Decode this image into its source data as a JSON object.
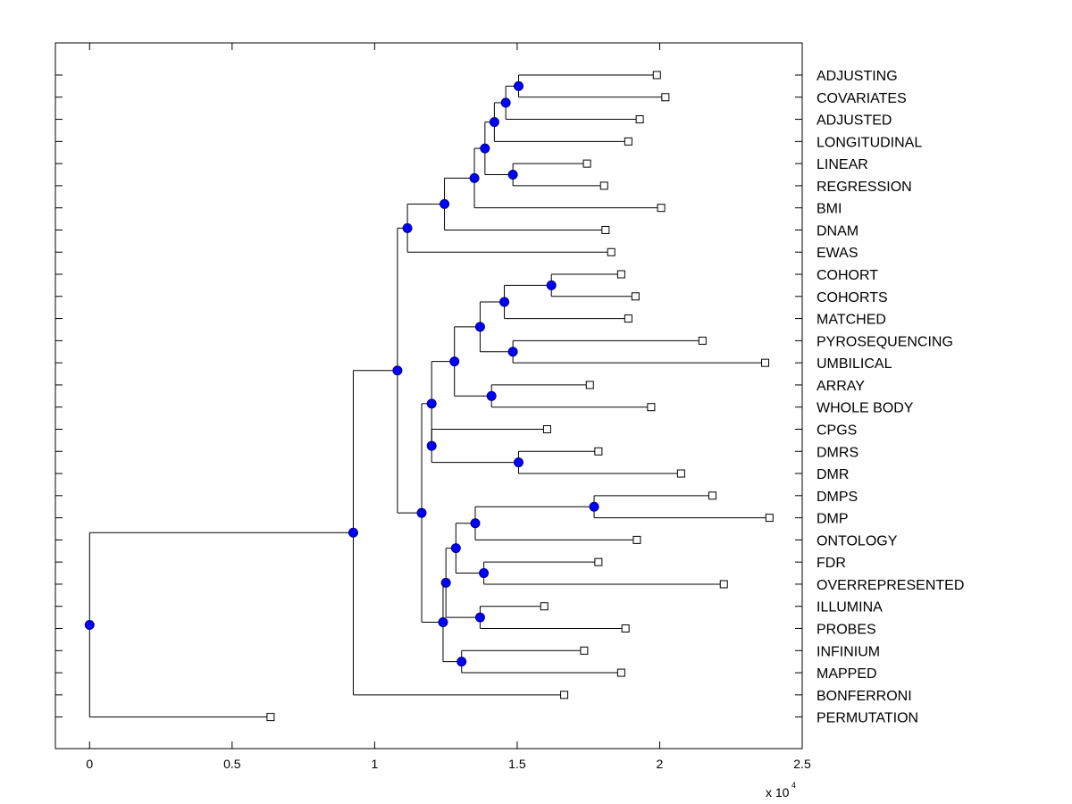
{
  "chart_data": {
    "type": "dendrogram",
    "title": "",
    "xlabel": "",
    "ylabel": "",
    "x_multiplier_label": "x 10",
    "x_multiplier_exponent": "4",
    "xlim": [
      -0.12,
      2.5
    ],
    "x_ticks": [
      0,
      0.5,
      1,
      1.5,
      2,
      2.5
    ],
    "x_tick_labels": [
      "0",
      "0.5",
      "1",
      "1.5",
      "2",
      "2.5"
    ],
    "grid": false,
    "leaves": [
      {
        "label": "ADJUSTING",
        "x": 1.99
      },
      {
        "label": "COVARIATES",
        "x": 2.02
      },
      {
        "label": "ADJUSTED",
        "x": 1.93
      },
      {
        "label": "LONGITUDINAL",
        "x": 1.89
      },
      {
        "label": "LINEAR",
        "x": 1.745
      },
      {
        "label": "REGRESSION",
        "x": 1.805
      },
      {
        "label": "BMI",
        "x": 2.005
      },
      {
        "label": "DNAM",
        "x": 1.81
      },
      {
        "label": "EWAS",
        "x": 1.83
      },
      {
        "label": "COHORT",
        "x": 1.865
      },
      {
        "label": "COHORTS",
        "x": 1.915
      },
      {
        "label": "MATCHED",
        "x": 1.89
      },
      {
        "label": "PYROSEQUENCING",
        "x": 2.15
      },
      {
        "label": "UMBILICAL",
        "x": 2.37
      },
      {
        "label": "ARRAY",
        "x": 1.755
      },
      {
        "label": "WHOLE BODY",
        "x": 1.97
      },
      {
        "label": "CPGS",
        "x": 1.605
      },
      {
        "label": "DMRS",
        "x": 1.785
      },
      {
        "label": "DMR",
        "x": 2.075
      },
      {
        "label": "DMPS",
        "x": 2.185
      },
      {
        "label": "DMP",
        "x": 2.385
      },
      {
        "label": "ONTOLOGY",
        "x": 1.92
      },
      {
        "label": "FDR",
        "x": 1.785
      },
      {
        "label": "OVERREPRESENTED",
        "x": 2.225
      },
      {
        "label": "ILLUMINA",
        "x": 1.595
      },
      {
        "label": "PROBES",
        "x": 1.88
      },
      {
        "label": "INFINIUM",
        "x": 1.735
      },
      {
        "label": "MAPPED",
        "x": 1.865
      },
      {
        "label": "BONFERRONI",
        "x": 1.665
      },
      {
        "label": "PERMUTATION",
        "x": 0.635
      }
    ],
    "merges": [
      {
        "id": "m1",
        "x": 1.505,
        "children": [
          "ADJUSTING",
          "COVARIATES"
        ]
      },
      {
        "id": "m2",
        "x": 1.46,
        "children": [
          "m1",
          "ADJUSTED"
        ]
      },
      {
        "id": "m3",
        "x": 1.42,
        "children": [
          "m2",
          "LONGITUDINAL"
        ]
      },
      {
        "id": "m4",
        "x": 1.485,
        "children": [
          "LINEAR",
          "REGRESSION"
        ]
      },
      {
        "id": "m5",
        "x": 1.387,
        "children": [
          "m3",
          "m4"
        ]
      },
      {
        "id": "m6",
        "x": 1.35,
        "children": [
          "m5",
          "BMI"
        ]
      },
      {
        "id": "m7",
        "x": 1.245,
        "children": [
          "m6",
          "DNAM"
        ]
      },
      {
        "id": "m8",
        "x": 1.115,
        "children": [
          "m7",
          "EWAS"
        ]
      },
      {
        "id": "m9",
        "x": 1.62,
        "children": [
          "COHORT",
          "COHORTS"
        ]
      },
      {
        "id": "m10",
        "x": 1.455,
        "children": [
          "m9",
          "MATCHED"
        ]
      },
      {
        "id": "m11",
        "x": 1.485,
        "children": [
          "PYROSEQUENCING",
          "UMBILICAL"
        ]
      },
      {
        "id": "m12",
        "x": 1.37,
        "children": [
          "m10",
          "m11"
        ]
      },
      {
        "id": "m13",
        "x": 1.41,
        "children": [
          "ARRAY",
          "WHOLE BODY"
        ]
      },
      {
        "id": "m14",
        "x": 1.28,
        "children": [
          "m12",
          "m13"
        ]
      },
      {
        "id": "m15",
        "x": 1.505,
        "children": [
          "DMRS",
          "DMR"
        ]
      },
      {
        "id": "m16",
        "x": 1.2,
        "children": [
          "CPGS",
          "m15"
        ]
      },
      {
        "id": "m17",
        "x": 1.2,
        "children": [
          "m14",
          "m16"
        ]
      },
      {
        "id": "m18",
        "x": 1.77,
        "children": [
          "DMPS",
          "DMP"
        ]
      },
      {
        "id": "m19",
        "x": 1.353,
        "children": [
          "m18",
          "ONTOLOGY"
        ]
      },
      {
        "id": "m20",
        "x": 1.383,
        "children": [
          "FDR",
          "OVERREPRESENTED"
        ]
      },
      {
        "id": "m21",
        "x": 1.285,
        "children": [
          "m19",
          "m20"
        ]
      },
      {
        "id": "m22",
        "x": 1.37,
        "children": [
          "ILLUMINA",
          "PROBES"
        ]
      },
      {
        "id": "m23",
        "x": 1.25,
        "children": [
          "m21",
          "m22"
        ]
      },
      {
        "id": "m24",
        "x": 1.305,
        "children": [
          "INFINIUM",
          "MAPPED"
        ]
      },
      {
        "id": "m25",
        "x": 1.24,
        "children": [
          "m23",
          "m24"
        ]
      },
      {
        "id": "m26",
        "x": 1.165,
        "children": [
          "m17",
          "m25"
        ]
      },
      {
        "id": "m27",
        "x": 1.08,
        "children": [
          "m8",
          "m26"
        ]
      },
      {
        "id": "m28",
        "x": 0.925,
        "children": [
          "m27",
          "BONFERRONI"
        ]
      },
      {
        "id": "m29",
        "x": 0.0,
        "children": [
          "m28",
          "PERMUTATION"
        ]
      }
    ],
    "colors": {
      "node_fill": "#0000ff",
      "node_stroke": "#00007f",
      "line": "#000000",
      "leaf_marker_fill": "#ffffff",
      "axes": "#000000"
    }
  }
}
